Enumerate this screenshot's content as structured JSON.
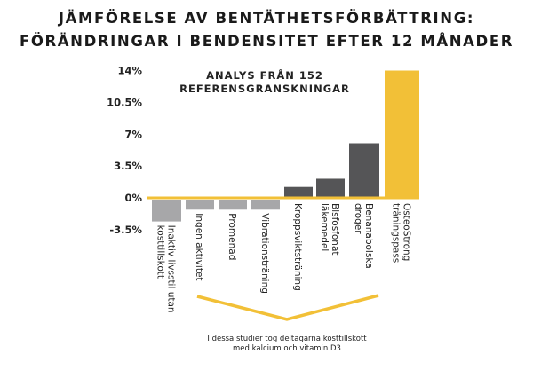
{
  "chart_data": {
    "type": "bar",
    "title": [
      "JÄMFÖRELSE AV BENTÄTHETSFÖRBÄTTRING:",
      "FÖRÄNDRINGAR I BENDENSITET EFTER 12 MÅNADER"
    ],
    "subtitle": [
      "ANALYS FRÅN 152",
      "REFERENSGRANSKNINGAR"
    ],
    "ylim": [
      -3.5,
      14
    ],
    "yticks": [
      14,
      10.5,
      7,
      3.5,
      0,
      -3.5
    ],
    "ytick_labels": [
      "14%",
      "10.5%",
      "7%",
      "3.5%",
      "0%",
      "-3.5%"
    ],
    "categories": [
      [
        "Inaktiv livsstil utan",
        "kosttillskott"
      ],
      [
        "Ingen aktivitet"
      ],
      [
        "Promenad"
      ],
      [
        "Vibrationsträning"
      ],
      [
        "Kroppsviktsträning"
      ],
      [
        "Bisfosfonat",
        "läkemedel"
      ],
      [
        "Benanabolska",
        "droger"
      ],
      [
        "OsteoStrong",
        "träningspass"
      ]
    ],
    "values": [
      -2.4,
      -1.1,
      -1.1,
      -1.1,
      1.2,
      2.1,
      6.0,
      14.0
    ],
    "bar_colors": [
      "#a7a7a9",
      "#a7a7a9",
      "#a7a7a9",
      "#a7a7a9",
      "#555557",
      "#555557",
      "#555557",
      "#f2c037"
    ],
    "zero_line_color": "#f2c037",
    "annotation": [
      "I dessa studier tog deltagarna kosttillskott",
      "med kalcium och vitamin D3"
    ],
    "annotation_bracket_color": "#f2c037",
    "grid": false,
    "legend": "none"
  }
}
